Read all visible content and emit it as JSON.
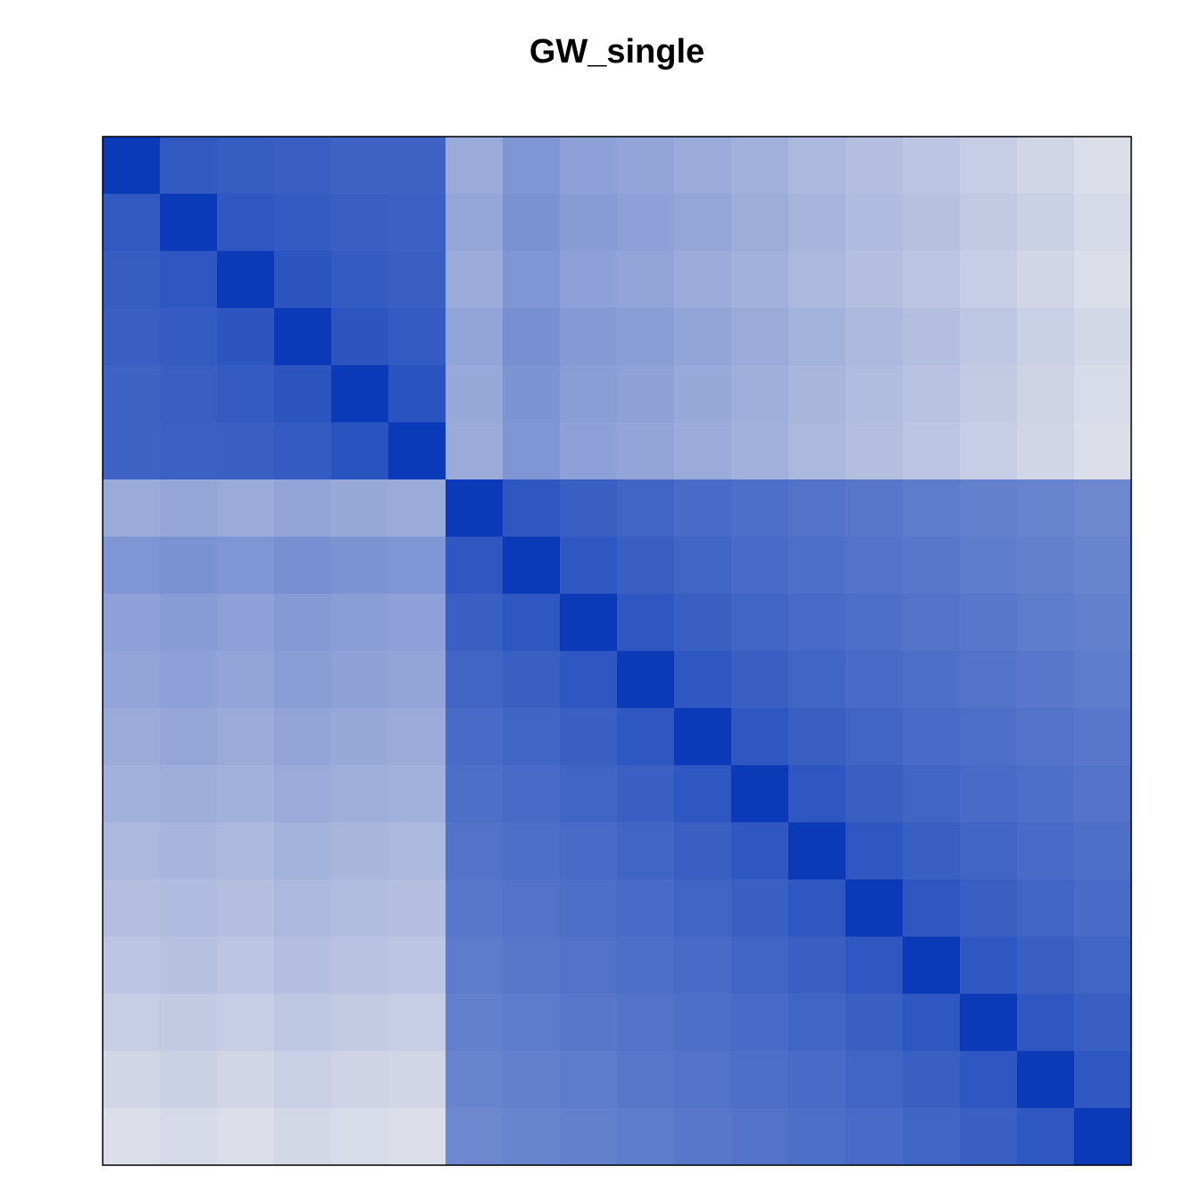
{
  "chart_data": {
    "type": "heatmap",
    "title": "GW_single",
    "zlim": [
      0.15,
      1
    ],
    "colors": [
      "#e8e8ec",
      "#0a3ab8"
    ],
    "values": [
      [
        1,
        0.85,
        0.83,
        0.82,
        0.8,
        0.8,
        0.45,
        0.55,
        0.5,
        0.48,
        0.45,
        0.42,
        0.38,
        0.35,
        0.32,
        0.28,
        0.24,
        0.2
      ],
      [
        0.85,
        1,
        0.86,
        0.84,
        0.82,
        0.81,
        0.47,
        0.57,
        0.52,
        0.5,
        0.47,
        0.44,
        0.4,
        0.37,
        0.34,
        0.3,
        0.26,
        0.22
      ],
      [
        0.83,
        0.86,
        1,
        0.87,
        0.84,
        0.82,
        0.45,
        0.55,
        0.5,
        0.48,
        0.45,
        0.42,
        0.38,
        0.35,
        0.32,
        0.28,
        0.24,
        0.2
      ],
      [
        0.82,
        0.84,
        0.87,
        1,
        0.87,
        0.84,
        0.48,
        0.58,
        0.53,
        0.51,
        0.48,
        0.45,
        0.41,
        0.38,
        0.35,
        0.31,
        0.27,
        0.23
      ],
      [
        0.8,
        0.82,
        0.84,
        0.87,
        1,
        0.88,
        0.46,
        0.56,
        0.51,
        0.49,
        0.46,
        0.43,
        0.39,
        0.36,
        0.33,
        0.29,
        0.25,
        0.21
      ],
      [
        0.8,
        0.81,
        0.82,
        0.84,
        0.88,
        1,
        0.45,
        0.55,
        0.5,
        0.48,
        0.45,
        0.42,
        0.38,
        0.35,
        0.32,
        0.28,
        0.24,
        0.2
      ],
      [
        0.45,
        0.47,
        0.45,
        0.48,
        0.46,
        0.45,
        1,
        0.86,
        0.82,
        0.79,
        0.76,
        0.74,
        0.72,
        0.7,
        0.68,
        0.66,
        0.64,
        0.62
      ],
      [
        0.55,
        0.57,
        0.55,
        0.58,
        0.56,
        0.55,
        0.86,
        1,
        0.86,
        0.82,
        0.79,
        0.76,
        0.74,
        0.72,
        0.7,
        0.68,
        0.66,
        0.64
      ],
      [
        0.5,
        0.52,
        0.5,
        0.53,
        0.51,
        0.5,
        0.82,
        0.86,
        1,
        0.86,
        0.82,
        0.79,
        0.76,
        0.74,
        0.72,
        0.7,
        0.68,
        0.66
      ],
      [
        0.48,
        0.5,
        0.48,
        0.51,
        0.49,
        0.48,
        0.79,
        0.82,
        0.86,
        1,
        0.86,
        0.82,
        0.79,
        0.76,
        0.74,
        0.72,
        0.7,
        0.68
      ],
      [
        0.45,
        0.47,
        0.45,
        0.48,
        0.46,
        0.45,
        0.76,
        0.79,
        0.82,
        0.86,
        1,
        0.86,
        0.82,
        0.79,
        0.76,
        0.74,
        0.72,
        0.7
      ],
      [
        0.42,
        0.44,
        0.42,
        0.45,
        0.43,
        0.42,
        0.74,
        0.76,
        0.79,
        0.82,
        0.86,
        1,
        0.86,
        0.82,
        0.79,
        0.76,
        0.74,
        0.72
      ],
      [
        0.38,
        0.4,
        0.38,
        0.41,
        0.39,
        0.38,
        0.72,
        0.74,
        0.76,
        0.79,
        0.82,
        0.86,
        1,
        0.86,
        0.82,
        0.79,
        0.76,
        0.74
      ],
      [
        0.35,
        0.37,
        0.35,
        0.38,
        0.36,
        0.35,
        0.7,
        0.72,
        0.74,
        0.76,
        0.79,
        0.82,
        0.86,
        1,
        0.86,
        0.82,
        0.79,
        0.76
      ],
      [
        0.32,
        0.34,
        0.32,
        0.35,
        0.33,
        0.32,
        0.68,
        0.7,
        0.72,
        0.74,
        0.76,
        0.79,
        0.82,
        0.86,
        1,
        0.86,
        0.82,
        0.79
      ],
      [
        0.28,
        0.3,
        0.28,
        0.31,
        0.29,
        0.28,
        0.66,
        0.68,
        0.7,
        0.72,
        0.74,
        0.76,
        0.79,
        0.82,
        0.86,
        1,
        0.86,
        0.82
      ],
      [
        0.24,
        0.26,
        0.24,
        0.27,
        0.25,
        0.24,
        0.64,
        0.66,
        0.68,
        0.7,
        0.72,
        0.74,
        0.76,
        0.79,
        0.82,
        0.86,
        1,
        0.86
      ],
      [
        0.2,
        0.22,
        0.2,
        0.23,
        0.21,
        0.2,
        0.62,
        0.64,
        0.66,
        0.68,
        0.7,
        0.72,
        0.74,
        0.76,
        0.79,
        0.82,
        0.86,
        1
      ]
    ]
  }
}
